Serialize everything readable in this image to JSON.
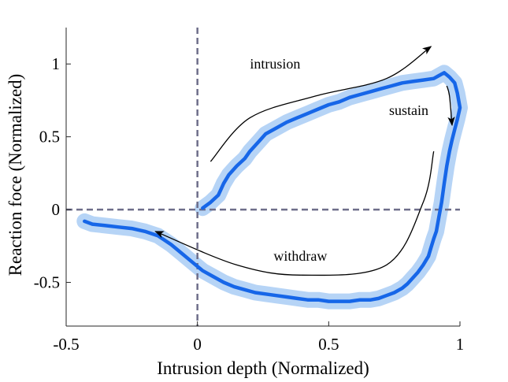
{
  "chart_data": {
    "type": "line",
    "xlabel": "Intrusion depth (Normalized)",
    "ylabel": "Reaction foce (Normalized)",
    "xlim": [
      -0.5,
      1.0
    ],
    "ylim": [
      -0.8,
      1.25
    ],
    "xticks": [
      -0.5,
      0,
      0.5,
      1
    ],
    "xtick_labels": [
      "-0.5",
      "0",
      "0.5",
      "1"
    ],
    "yticks": [
      -0.5,
      0,
      0.5,
      1
    ],
    "ytick_labels": [
      "-0.5",
      "0",
      "0.5",
      "1"
    ],
    "grid": false,
    "reference_lines": {
      "x": 0,
      "y": 0,
      "style": "dashed",
      "color": "#6e6e8a"
    },
    "colors": {
      "line": "#1666e8",
      "band": "#a9ccf5",
      "arrow": "#000000"
    },
    "series": [
      {
        "x": [
          0.02,
          0.05,
          0.08,
          0.1,
          0.12,
          0.15,
          0.18,
          0.2,
          0.23,
          0.26,
          0.3,
          0.34,
          0.38,
          0.42,
          0.46,
          0.5,
          0.54,
          0.58,
          0.62,
          0.66,
          0.7,
          0.74,
          0.78,
          0.82,
          0.86,
          0.9,
          0.92,
          0.94,
          0.96,
          0.98,
          0.99,
          1.0,
          0.99,
          0.98,
          0.97,
          0.96,
          0.95,
          0.94,
          0.93,
          0.92,
          0.91,
          0.9,
          0.89,
          0.88,
          0.86,
          0.84,
          0.82,
          0.8,
          0.78,
          0.75,
          0.72,
          0.69,
          0.66,
          0.62,
          0.58,
          0.54,
          0.5,
          0.46,
          0.42,
          0.38,
          0.34,
          0.3,
          0.26,
          0.22,
          0.18,
          0.14,
          0.1,
          0.06,
          0.02,
          -0.02,
          -0.06,
          -0.1,
          -0.15,
          -0.2,
          -0.25,
          -0.3,
          -0.35,
          -0.4,
          -0.43
        ],
        "y": [
          0.01,
          0.05,
          0.1,
          0.18,
          0.24,
          0.3,
          0.35,
          0.4,
          0.46,
          0.52,
          0.56,
          0.6,
          0.63,
          0.66,
          0.69,
          0.72,
          0.74,
          0.77,
          0.79,
          0.81,
          0.83,
          0.85,
          0.87,
          0.88,
          0.89,
          0.9,
          0.92,
          0.94,
          0.91,
          0.87,
          0.8,
          0.7,
          0.62,
          0.55,
          0.48,
          0.4,
          0.3,
          0.18,
          0.05,
          -0.05,
          -0.15,
          -0.2,
          -0.26,
          -0.32,
          -0.38,
          -0.43,
          -0.47,
          -0.51,
          -0.54,
          -0.57,
          -0.59,
          -0.61,
          -0.62,
          -0.62,
          -0.63,
          -0.63,
          -0.63,
          -0.62,
          -0.62,
          -0.61,
          -0.6,
          -0.59,
          -0.58,
          -0.57,
          -0.55,
          -0.53,
          -0.5,
          -0.46,
          -0.42,
          -0.36,
          -0.3,
          -0.24,
          -0.18,
          -0.15,
          -0.13,
          -0.12,
          -0.11,
          -0.1,
          -0.08
        ]
      }
    ],
    "annotations": [
      {
        "text": "intrusion",
        "x": 0.2,
        "y": 0.97
      },
      {
        "text": "sustain",
        "x": 0.73,
        "y": 0.65
      },
      {
        "text": "withdraw",
        "x": 0.29,
        "y": -0.35
      }
    ],
    "arrows": [
      {
        "label": "intrusion",
        "points": [
          [
            0.05,
            0.33
          ],
          [
            0.2,
            0.63
          ],
          [
            0.45,
            0.78
          ],
          [
            0.72,
            0.9
          ],
          [
            0.89,
            1.12
          ]
        ]
      },
      {
        "label": "sustain",
        "points": [
          [
            0.95,
            0.85
          ],
          [
            0.96,
            0.78
          ],
          [
            0.97,
            0.58
          ]
        ]
      },
      {
        "label": "withdraw",
        "points": [
          [
            0.9,
            0.4
          ],
          [
            0.86,
            0.05
          ],
          [
            0.72,
            -0.38
          ],
          [
            0.4,
            -0.45
          ],
          [
            0.15,
            -0.38
          ],
          [
            -0.16,
            -0.15
          ]
        ]
      }
    ]
  }
}
